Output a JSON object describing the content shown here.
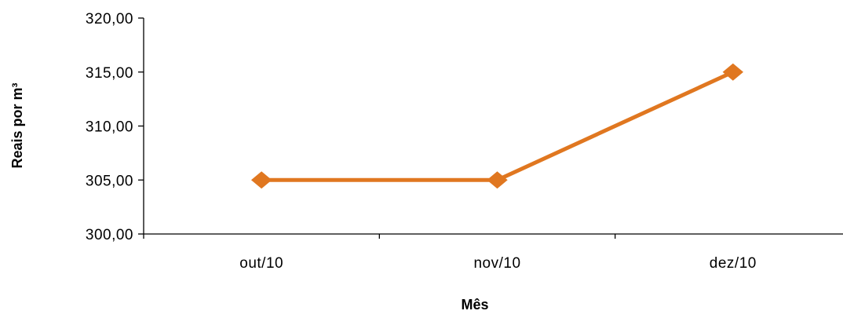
{
  "chart_data": {
    "type": "line",
    "categories": [
      "out/10",
      "nov/10",
      "dez/10"
    ],
    "series": [
      {
        "values": [
          305.0,
          305.0,
          315.0
        ],
        "color": "#E07720"
      }
    ],
    "ylabel": "Reais por m³",
    "xlabel": "Mês",
    "ylim": [
      300,
      320
    ],
    "yticks": [
      {
        "value": 300,
        "label": "300,00"
      },
      {
        "value": 305,
        "label": "305,00"
      },
      {
        "value": 310,
        "label": "310,00"
      },
      {
        "value": 315,
        "label": "315,00"
      },
      {
        "value": 320,
        "label": "320,00"
      }
    ],
    "marker": "diamond",
    "grid": false,
    "legend": "none"
  }
}
